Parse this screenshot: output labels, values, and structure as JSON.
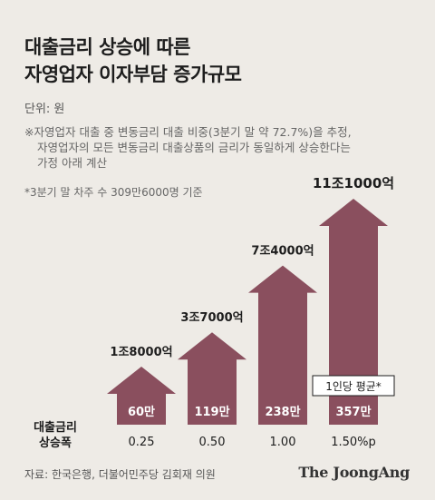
{
  "title_line1": "대출금리 상승에 따른",
  "title_line2": "자영업자 이자부담 증가규모",
  "unit": "단위: 원",
  "note_line1": "※자영업자 대출 중 변동금리 대출 비중(3분기 말 약 72.7%)을 추정,",
  "note_line2": "자영업자의 모든 변동금리 대출상품의 금리가 동일하게 상승한다는",
  "note_line3": "가정 아래 계산",
  "base_note": "*3분기 말 차주 수 309만6000명 기준",
  "row_label_line1": "대출금리",
  "row_label_line2": "상승폭",
  "source": "자료: 한국은행, 더불어민주당 김회재 의원",
  "logo": "The JoongAng",
  "colors": {
    "arrow": "#8a4f5e",
    "background": "#eeebe6",
    "callout_border": "#1d1d1d"
  },
  "chart_data": {
    "type": "bar",
    "style": "upward arrows",
    "categories": [
      "0.25",
      "0.50",
      "1.00",
      "1.50%p"
    ],
    "total_labels": [
      "1조8000억",
      "3조7000억",
      "7조4000억",
      "11조1000억"
    ],
    "totals_krw_eok": [
      18000,
      37000,
      74000,
      111000
    ],
    "per_person_labels": [
      "60만",
      "119만",
      "238만",
      "357만"
    ],
    "per_person_krw_man": [
      60,
      119,
      238,
      357
    ],
    "callout": "1인당 평균*",
    "callout_category": "1.50%p"
  }
}
